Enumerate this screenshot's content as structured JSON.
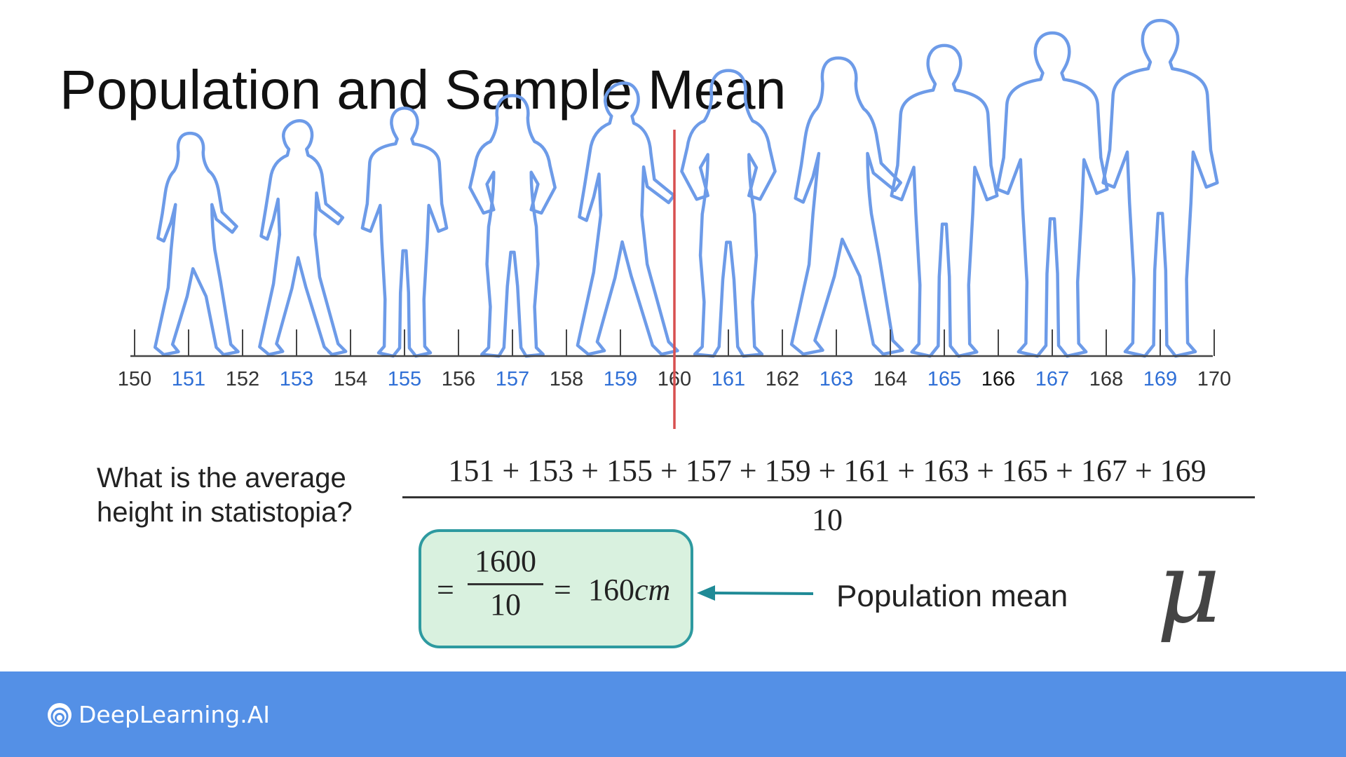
{
  "title": "Population and Sample Mean",
  "chart_data": {
    "type": "diagram",
    "axis": {
      "min": 150,
      "max": 170,
      "tick_labels": [
        "150",
        "151",
        "152",
        "153",
        "154",
        "155",
        "156",
        "157",
        "158",
        "159",
        "160",
        "161",
        "162",
        "163",
        "164",
        "165",
        "166",
        "167",
        "168",
        "169",
        "170"
      ]
    },
    "people": [
      {
        "height": 151,
        "figure": "walking-woman"
      },
      {
        "height": 153,
        "figure": "walking-man"
      },
      {
        "height": 155,
        "figure": "standing-man"
      },
      {
        "height": 157,
        "figure": "standing-woman"
      },
      {
        "height": 159,
        "figure": "walking-man"
      },
      {
        "height": 161,
        "figure": "standing-woman"
      },
      {
        "height": 163,
        "figure": "walking-woman"
      },
      {
        "height": 165,
        "figure": "standing-man"
      },
      {
        "height": 167,
        "figure": "standing-man"
      },
      {
        "height": 169,
        "figure": "standing-man"
      }
    ],
    "mean_marker": 160
  },
  "question": {
    "line1": "What is the average",
    "line2": "height in statistopia?"
  },
  "formula": {
    "numerator": "151 + 153 + 155 + 157 + 159 + 161 + 163 + 165 + 167 + 169",
    "denominator": "10"
  },
  "result": {
    "eq1": "=",
    "fraction_num": "1600",
    "fraction_den": "10",
    "eq2": "=",
    "value": "160",
    "unit": "cm"
  },
  "label": "Population mean",
  "symbol": "μ",
  "footer": {
    "logo_text": "DeepLearning.AI"
  },
  "colors": {
    "figure_stroke": "#6d9be8",
    "highlight_label": "#2f6fd6",
    "normal_label": "#333333",
    "emphasis_label": "#111111",
    "mean_line": "#d85050",
    "box_border": "#2e9aa0",
    "box_fill": "#d9f1df",
    "arrow": "#1f8a96",
    "footer_bg": "#5490e6"
  }
}
